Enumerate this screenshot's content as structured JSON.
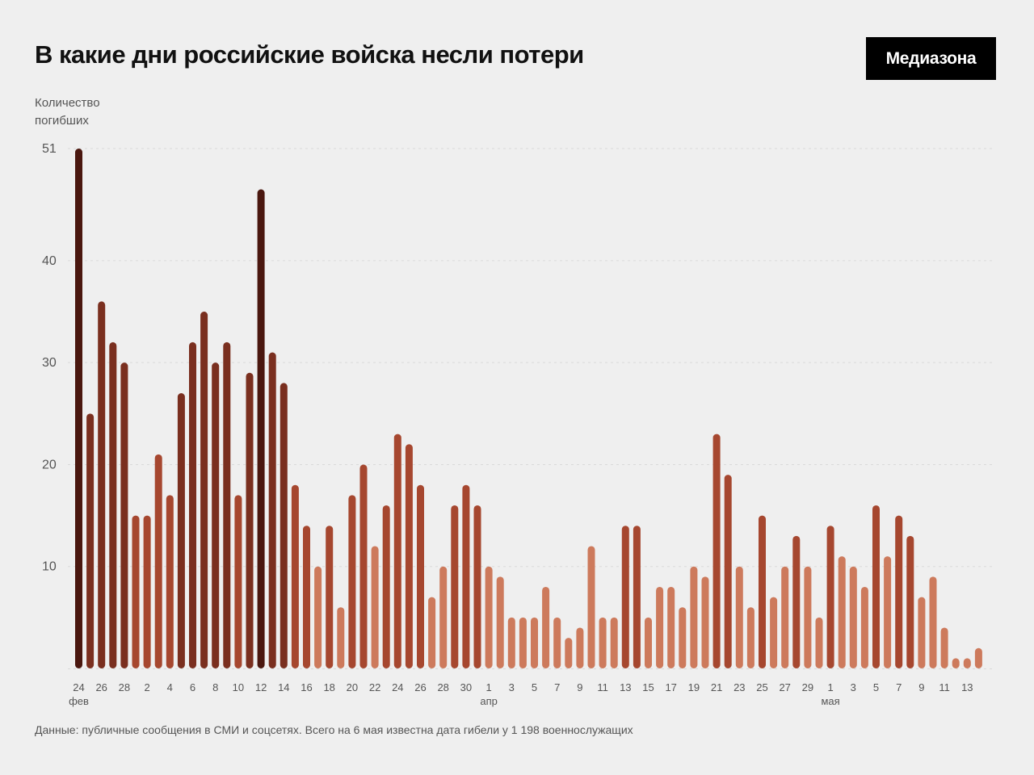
{
  "title": "В какие дни российские войска несли потери",
  "logo": "Медиазона",
  "source": "Данные: публичные сообщения в СМИ и соцсетях. Всего на 6 мая известна дата гибели у 1 198 военнослужащих",
  "chart_data": {
    "type": "bar",
    "title": "В какие дни российские войска несли потери",
    "ylabel_lines": [
      "Количество",
      "погибших"
    ],
    "xlabel": "",
    "ylim": [
      0,
      51
    ],
    "yticks": [
      51,
      40,
      30,
      20,
      10
    ],
    "grid": true,
    "colors": {
      "low": "#cd7a5c",
      "mid": "#a6472f",
      "high": "#7a2f1f",
      "max": "#4a170f"
    },
    "categories": [
      "24 фев",
      "25 фев",
      "26 фев",
      "27 фев",
      "28 фев",
      "1 мар",
      "2 мар",
      "3 мар",
      "4 мар",
      "5 мар",
      "6 мар",
      "7 мар",
      "8 мар",
      "9 мар",
      "10 мар",
      "11 мар",
      "12 мар",
      "13 мар",
      "14 мар",
      "15 мар",
      "16 мар",
      "17 мар",
      "18 мар",
      "19 мар",
      "20 мар",
      "21 мар",
      "22 мар",
      "23 мар",
      "24 мар",
      "25 мар",
      "26 мар",
      "27 мар",
      "28 мар",
      "29 мар",
      "30 мар",
      "31 мар",
      "1 апр",
      "2 апр",
      "3 апр",
      "4 апр",
      "5 апр",
      "6 апр",
      "7 апр",
      "8 апр",
      "9 апр",
      "10 апр",
      "11 апр",
      "12 апр",
      "13 апр",
      "14 апр",
      "15 апр",
      "16 апр",
      "17 апр",
      "18 апр",
      "19 апр",
      "20 апр",
      "21 апр",
      "22 апр",
      "23 апр",
      "24 апр",
      "25 апр",
      "26 апр",
      "27 апр",
      "28 апр",
      "29 апр",
      "30 апр",
      "1 мая",
      "2 мая",
      "3 мая",
      "4 мая",
      "5 мая",
      "6 мая",
      "7 мая",
      "8 мая",
      "9 мая",
      "10 мая",
      "11 мая",
      "12 мая",
      "13 мая",
      "14 мая"
    ],
    "values": [
      51,
      25,
      36,
      32,
      30,
      15,
      15,
      21,
      17,
      27,
      32,
      35,
      30,
      32,
      17,
      29,
      47,
      31,
      28,
      18,
      14,
      10,
      14,
      6,
      17,
      20,
      12,
      16,
      23,
      22,
      18,
      7,
      10,
      16,
      18,
      16,
      10,
      9,
      5,
      5,
      5,
      8,
      5,
      3,
      4,
      12,
      5,
      5,
      14,
      14,
      5,
      8,
      8,
      6,
      10,
      9,
      23,
      19,
      10,
      6,
      15,
      7,
      10,
      13,
      10,
      5,
      14,
      11,
      10,
      8,
      16,
      11,
      15,
      13,
      7,
      9,
      4,
      1,
      1,
      2
    ],
    "xtick_labels": [
      {
        "index": 0,
        "label": "24"
      },
      {
        "index": 2,
        "label": "26"
      },
      {
        "index": 4,
        "label": "28"
      },
      {
        "index": 6,
        "label": "2"
      },
      {
        "index": 8,
        "label": "4"
      },
      {
        "index": 10,
        "label": "6"
      },
      {
        "index": 12,
        "label": "8"
      },
      {
        "index": 14,
        "label": "10"
      },
      {
        "index": 16,
        "label": "12"
      },
      {
        "index": 18,
        "label": "14"
      },
      {
        "index": 20,
        "label": "16"
      },
      {
        "index": 22,
        "label": "18"
      },
      {
        "index": 24,
        "label": "20"
      },
      {
        "index": 26,
        "label": "22"
      },
      {
        "index": 28,
        "label": "24"
      },
      {
        "index": 30,
        "label": "26"
      },
      {
        "index": 32,
        "label": "28"
      },
      {
        "index": 34,
        "label": "30"
      },
      {
        "index": 36,
        "label": "1"
      },
      {
        "index": 38,
        "label": "3"
      },
      {
        "index": 40,
        "label": "5"
      },
      {
        "index": 42,
        "label": "7"
      },
      {
        "index": 44,
        "label": "9"
      },
      {
        "index": 46,
        "label": "11"
      },
      {
        "index": 48,
        "label": "13"
      },
      {
        "index": 50,
        "label": "15"
      },
      {
        "index": 52,
        "label": "17"
      },
      {
        "index": 54,
        "label": "19"
      },
      {
        "index": 56,
        "label": "21"
      },
      {
        "index": 58,
        "label": "23"
      },
      {
        "index": 60,
        "label": "25"
      },
      {
        "index": 62,
        "label": "27"
      },
      {
        "index": 64,
        "label": "29"
      },
      {
        "index": 66,
        "label": "1"
      },
      {
        "index": 68,
        "label": "3"
      },
      {
        "index": 70,
        "label": "5"
      },
      {
        "index": 72,
        "label": "7"
      },
      {
        "index": 74,
        "label": "9"
      },
      {
        "index": 76,
        "label": "11"
      },
      {
        "index": 78,
        "label": "13"
      }
    ],
    "month_labels": [
      {
        "index": 0,
        "label": "фев"
      },
      {
        "index": 36,
        "label": "апр"
      },
      {
        "index": 66,
        "label": "мая"
      }
    ]
  }
}
